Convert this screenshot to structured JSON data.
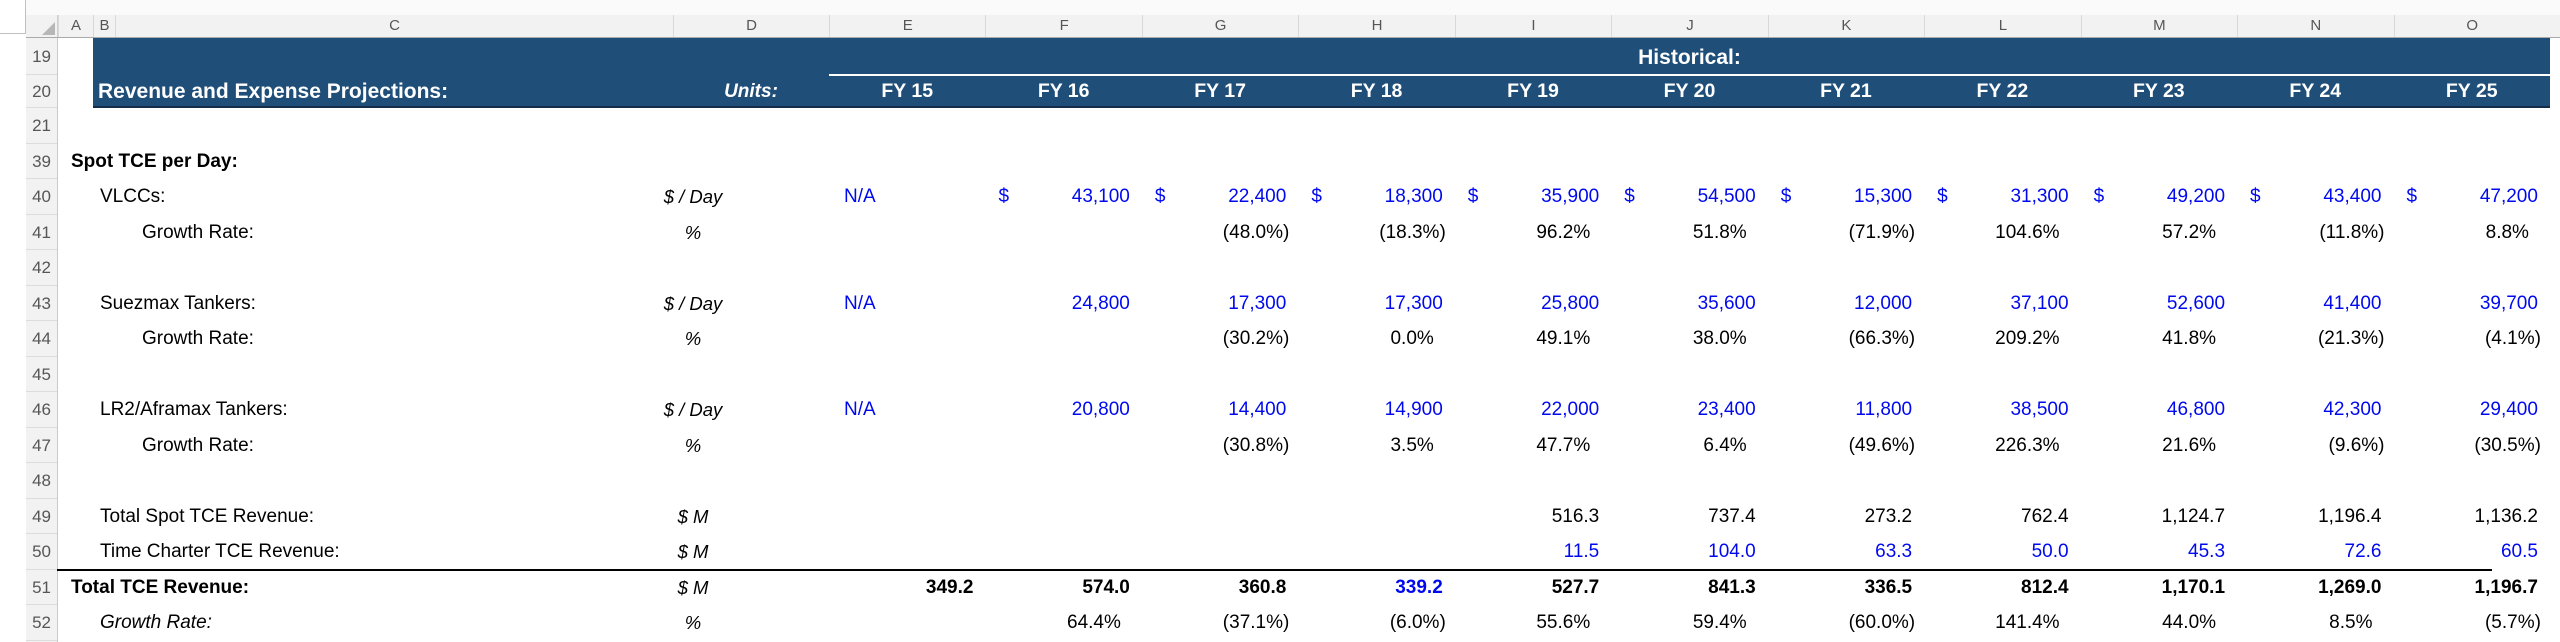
{
  "sheet": {
    "colors": {
      "header_navy": "#1f4e79",
      "input_blue": "#0009ee",
      "text_black": "#000000",
      "header_grey": "#f2f2f2"
    },
    "column_headers": [
      "A",
      "B",
      "C",
      "D",
      "E",
      "F",
      "G",
      "H",
      "I",
      "J",
      "K",
      "L",
      "M",
      "N",
      "O"
    ],
    "row_numbers": [
      19,
      20,
      21,
      39,
      40,
      41,
      42,
      43,
      44,
      45,
      46,
      47,
      48,
      49,
      50,
      51,
      52
    ],
    "header_band": {
      "historical_label": "Historical:",
      "title": "Revenue and Expense Projections:",
      "units_label": "Units:",
      "fy_labels": [
        "FY 15",
        "FY 16",
        "FY 17",
        "FY 18",
        "FY 19",
        "FY 20",
        "FY 21",
        "FY 22",
        "FY 23",
        "FY 24",
        "FY 25"
      ]
    },
    "rows": [
      {
        "num": 21,
        "label": "",
        "unit": "",
        "cells": []
      },
      {
        "num": 39,
        "label": "Spot TCE per Day:",
        "level": 1,
        "unit": "",
        "cells": []
      },
      {
        "num": 40,
        "label": "VLCCs:",
        "level": 2,
        "unit": "$ / Day",
        "cells": [
          {
            "t": "N/A",
            "cls": "na in"
          },
          {
            "t": "43,100",
            "cls": "in num",
            "pre": "$"
          },
          {
            "t": "22,400",
            "cls": "in num",
            "pre": "$"
          },
          {
            "t": "18,300",
            "cls": "in num",
            "pre": "$"
          },
          {
            "t": "35,900",
            "cls": "in num",
            "pre": "$"
          },
          {
            "t": "54,500",
            "cls": "in num",
            "pre": "$"
          },
          {
            "t": "15,300",
            "cls": "in num",
            "pre": "$"
          },
          {
            "t": "31,300",
            "cls": "in num",
            "pre": "$"
          },
          {
            "t": "49,200",
            "cls": "in num",
            "pre": "$"
          },
          {
            "t": "43,400",
            "cls": "in num",
            "pre": "$"
          },
          {
            "t": "47,200",
            "cls": "in num",
            "pre": "$"
          }
        ]
      },
      {
        "num": 41,
        "label": "Growth Rate:",
        "level": 3,
        "unit": "%",
        "cells": [
          {
            "t": ""
          },
          {
            "t": ""
          },
          {
            "t": "(48.0%)",
            "cls": "np"
          },
          {
            "t": "(18.3%)",
            "cls": "np"
          },
          {
            "t": "96.2%",
            "cls": "pp"
          },
          {
            "t": "51.8%",
            "cls": "pp"
          },
          {
            "t": "(71.9%)",
            "cls": "np"
          },
          {
            "t": "104.6%",
            "cls": "pp"
          },
          {
            "t": "57.2%",
            "cls": "pp"
          },
          {
            "t": "(11.8%)",
            "cls": "np"
          },
          {
            "t": "8.8%",
            "cls": "pp"
          }
        ]
      },
      {
        "num": 42,
        "label": "",
        "unit": "",
        "cells": []
      },
      {
        "num": 43,
        "label": "Suezmax Tankers:",
        "level": 2,
        "unit": "$ / Day",
        "cells": [
          {
            "t": "N/A",
            "cls": "na in"
          },
          {
            "t": "24,800",
            "cls": "in num"
          },
          {
            "t": "17,300",
            "cls": "in num"
          },
          {
            "t": "17,300",
            "cls": "in num"
          },
          {
            "t": "25,800",
            "cls": "in num"
          },
          {
            "t": "35,600",
            "cls": "in num"
          },
          {
            "t": "12,000",
            "cls": "in num"
          },
          {
            "t": "37,100",
            "cls": "in num"
          },
          {
            "t": "52,600",
            "cls": "in num"
          },
          {
            "t": "41,400",
            "cls": "in num"
          },
          {
            "t": "39,700",
            "cls": "in num"
          }
        ]
      },
      {
        "num": 44,
        "label": "Growth Rate:",
        "level": 3,
        "unit": "%",
        "cells": [
          {
            "t": ""
          },
          {
            "t": ""
          },
          {
            "t": "(30.2%)",
            "cls": "np"
          },
          {
            "t": "0.0%",
            "cls": "pp"
          },
          {
            "t": "49.1%",
            "cls": "pp"
          },
          {
            "t": "38.0%",
            "cls": "pp"
          },
          {
            "t": "(66.3%)",
            "cls": "np"
          },
          {
            "t": "209.2%",
            "cls": "pp"
          },
          {
            "t": "41.8%",
            "cls": "pp"
          },
          {
            "t": "(21.3%)",
            "cls": "np"
          },
          {
            "t": "(4.1%)",
            "cls": "np"
          }
        ]
      },
      {
        "num": 45,
        "label": "",
        "unit": "",
        "cells": []
      },
      {
        "num": 46,
        "label": "LR2/Aframax Tankers:",
        "level": 2,
        "unit": "$ / Day",
        "cells": [
          {
            "t": "N/A",
            "cls": "na in"
          },
          {
            "t": "20,800",
            "cls": "in num"
          },
          {
            "t": "14,400",
            "cls": "in num"
          },
          {
            "t": "14,900",
            "cls": "in num"
          },
          {
            "t": "22,000",
            "cls": "in num"
          },
          {
            "t": "23,400",
            "cls": "in num"
          },
          {
            "t": "11,800",
            "cls": "in num"
          },
          {
            "t": "38,500",
            "cls": "in num"
          },
          {
            "t": "46,800",
            "cls": "in num"
          },
          {
            "t": "42,300",
            "cls": "in num"
          },
          {
            "t": "29,400",
            "cls": "in num"
          }
        ]
      },
      {
        "num": 47,
        "label": "Growth Rate:",
        "level": 3,
        "unit": "%",
        "cells": [
          {
            "t": ""
          },
          {
            "t": ""
          },
          {
            "t": "(30.8%)",
            "cls": "np"
          },
          {
            "t": "3.5%",
            "cls": "pp"
          },
          {
            "t": "47.7%",
            "cls": "pp"
          },
          {
            "t": "6.4%",
            "cls": "pp"
          },
          {
            "t": "(49.6%)",
            "cls": "np"
          },
          {
            "t": "226.3%",
            "cls": "pp"
          },
          {
            "t": "21.6%",
            "cls": "pp"
          },
          {
            "t": "(9.6%)",
            "cls": "np"
          },
          {
            "t": "(30.5%)",
            "cls": "np"
          }
        ]
      },
      {
        "num": 48,
        "label": "",
        "unit": "",
        "cells": []
      },
      {
        "num": 49,
        "label": "Total Spot TCE Revenue:",
        "level": 2,
        "unit": "$ M",
        "cells": [
          {
            "t": ""
          },
          {
            "t": ""
          },
          {
            "t": ""
          },
          {
            "t": ""
          },
          {
            "t": "516.3",
            "cls": "num"
          },
          {
            "t": "737.4",
            "cls": "num"
          },
          {
            "t": "273.2",
            "cls": "num"
          },
          {
            "t": "762.4",
            "cls": "num"
          },
          {
            "t": "1,124.7",
            "cls": "num"
          },
          {
            "t": "1,196.4",
            "cls": "num"
          },
          {
            "t": "1,136.2",
            "cls": "num"
          }
        ]
      },
      {
        "num": 50,
        "label": "Time Charter TCE Revenue:",
        "level": 2,
        "unit": "$ M",
        "cells": [
          {
            "t": ""
          },
          {
            "t": ""
          },
          {
            "t": ""
          },
          {
            "t": ""
          },
          {
            "t": "11.5",
            "cls": "in num"
          },
          {
            "t": "104.0",
            "cls": "in num"
          },
          {
            "t": "63.3",
            "cls": "in num"
          },
          {
            "t": "50.0",
            "cls": "in num"
          },
          {
            "t": "45.3",
            "cls": "in num"
          },
          {
            "t": "72.6",
            "cls": "in num"
          },
          {
            "t": "60.5",
            "cls": "in num"
          }
        ]
      },
      {
        "num": 51,
        "label": "Total TCE Revenue:",
        "level": 1,
        "unit": "$ M",
        "border_top": true,
        "cells": [
          {
            "t": "349.2",
            "cls": "num b"
          },
          {
            "t": "574.0",
            "cls": "num b"
          },
          {
            "t": "360.8",
            "cls": "num b"
          },
          {
            "t": "339.2",
            "cls": "in num b"
          },
          {
            "t": "527.7",
            "cls": "num b"
          },
          {
            "t": "841.3",
            "cls": "num b"
          },
          {
            "t": "336.5",
            "cls": "num b"
          },
          {
            "t": "812.4",
            "cls": "num b"
          },
          {
            "t": "1,170.1",
            "cls": "num b"
          },
          {
            "t": "1,269.0",
            "cls": "num b"
          },
          {
            "t": "1,196.7",
            "cls": "num b"
          }
        ]
      },
      {
        "num": 52,
        "label": "Growth Rate:",
        "level": 2,
        "italic": true,
        "unit": "%",
        "cells": [
          {
            "t": ""
          },
          {
            "t": "64.4%",
            "cls": "pp"
          },
          {
            "t": "(37.1%)",
            "cls": "np"
          },
          {
            "t": "(6.0%)",
            "cls": "np"
          },
          {
            "t": "55.6%",
            "cls": "pp"
          },
          {
            "t": "59.4%",
            "cls": "pp"
          },
          {
            "t": "(60.0%)",
            "cls": "np"
          },
          {
            "t": "141.4%",
            "cls": "pp"
          },
          {
            "t": "44.0%",
            "cls": "pp"
          },
          {
            "t": "8.5%",
            "cls": "pp"
          },
          {
            "t": "(5.7%)",
            "cls": "np"
          }
        ]
      }
    ]
  }
}
